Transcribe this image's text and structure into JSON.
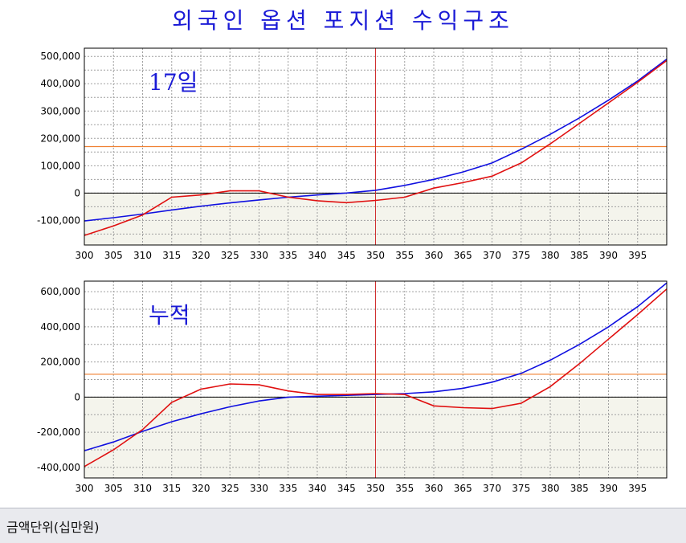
{
  "title": "외국인 옵션 포지션 수익구조",
  "status_bar": {
    "unit_label": "금액단위(십만원)"
  },
  "chart_data": [
    {
      "type": "line",
      "annotation": "17일",
      "xlim": [
        300,
        400
      ],
      "ylim": [
        -190000,
        530000
      ],
      "x_ticks": [
        300,
        305,
        310,
        315,
        320,
        325,
        330,
        335,
        340,
        345,
        350,
        355,
        360,
        365,
        370,
        375,
        380,
        385,
        390,
        395
      ],
      "y_ticks": [
        -100000,
        0,
        100000,
        200000,
        300000,
        400000,
        500000
      ],
      "y_tick_labels": [
        "-100,000",
        "0",
        "100,000",
        "200,000",
        "300,000",
        "400,000",
        "500,000"
      ],
      "grid": true,
      "vline_x": 350,
      "hline_y": 170000,
      "zero_line": true,
      "colors": {
        "series_blue": "#1010e0",
        "series_red": "#e01010",
        "hline": "#f08030",
        "vline": "#d03030"
      },
      "series": [
        {
          "color": "blue",
          "x": [
            300,
            305,
            310,
            315,
            320,
            325,
            330,
            335,
            340,
            345,
            350,
            355,
            360,
            365,
            370,
            375,
            380,
            385,
            390,
            395,
            400
          ],
          "y": [
            -102000,
            -90000,
            -77000,
            -62000,
            -48000,
            -36000,
            -25000,
            -15000,
            -7000,
            0,
            10000,
            28000,
            50000,
            77000,
            110000,
            160000,
            215000,
            275000,
            340000,
            410000,
            490000
          ]
        },
        {
          "color": "red",
          "x": [
            300,
            305,
            310,
            315,
            320,
            325,
            330,
            335,
            340,
            345,
            350,
            355,
            360,
            365,
            370,
            375,
            380,
            385,
            390,
            395,
            400
          ],
          "y": [
            -155000,
            -120000,
            -80000,
            -15000,
            -7000,
            8000,
            8000,
            -15000,
            -28000,
            -35000,
            -27000,
            -15000,
            18000,
            38000,
            62000,
            110000,
            180000,
            255000,
            330000,
            405000,
            485000
          ]
        }
      ]
    },
    {
      "type": "line",
      "annotation": "누적",
      "xlim": [
        300,
        400
      ],
      "ylim": [
        -460000,
        660000
      ],
      "x_ticks": [
        300,
        305,
        310,
        315,
        320,
        325,
        330,
        335,
        340,
        345,
        350,
        355,
        360,
        365,
        370,
        375,
        380,
        385,
        390,
        395
      ],
      "y_ticks": [
        -400000,
        -200000,
        0,
        200000,
        400000,
        600000
      ],
      "y_tick_labels": [
        "-400,000",
        "-200,000",
        "0",
        "200,000",
        "400,000",
        "600,000"
      ],
      "grid": true,
      "vline_x": 350,
      "hline_y": 130000,
      "zero_line": true,
      "colors": {
        "series_blue": "#1010e0",
        "series_red": "#e01010",
        "hline": "#f08030",
        "vline": "#d03030"
      },
      "series": [
        {
          "color": "blue",
          "x": [
            300,
            305,
            310,
            315,
            320,
            325,
            330,
            335,
            340,
            345,
            350,
            355,
            360,
            365,
            370,
            375,
            380,
            385,
            390,
            395,
            400
          ],
          "y": [
            -305000,
            -255000,
            -195000,
            -140000,
            -95000,
            -55000,
            -22000,
            0,
            5000,
            10000,
            15000,
            20000,
            30000,
            50000,
            85000,
            135000,
            210000,
            300000,
            400000,
            515000,
            650000
          ]
        },
        {
          "color": "red",
          "x": [
            300,
            305,
            310,
            315,
            320,
            325,
            330,
            335,
            340,
            345,
            350,
            355,
            360,
            365,
            370,
            375,
            380,
            385,
            390,
            395,
            400
          ],
          "y": [
            -395000,
            -300000,
            -185000,
            -30000,
            45000,
            75000,
            70000,
            35000,
            15000,
            15000,
            20000,
            15000,
            -50000,
            -60000,
            -65000,
            -35000,
            60000,
            190000,
            330000,
            470000,
            615000
          ]
        }
      ]
    }
  ]
}
